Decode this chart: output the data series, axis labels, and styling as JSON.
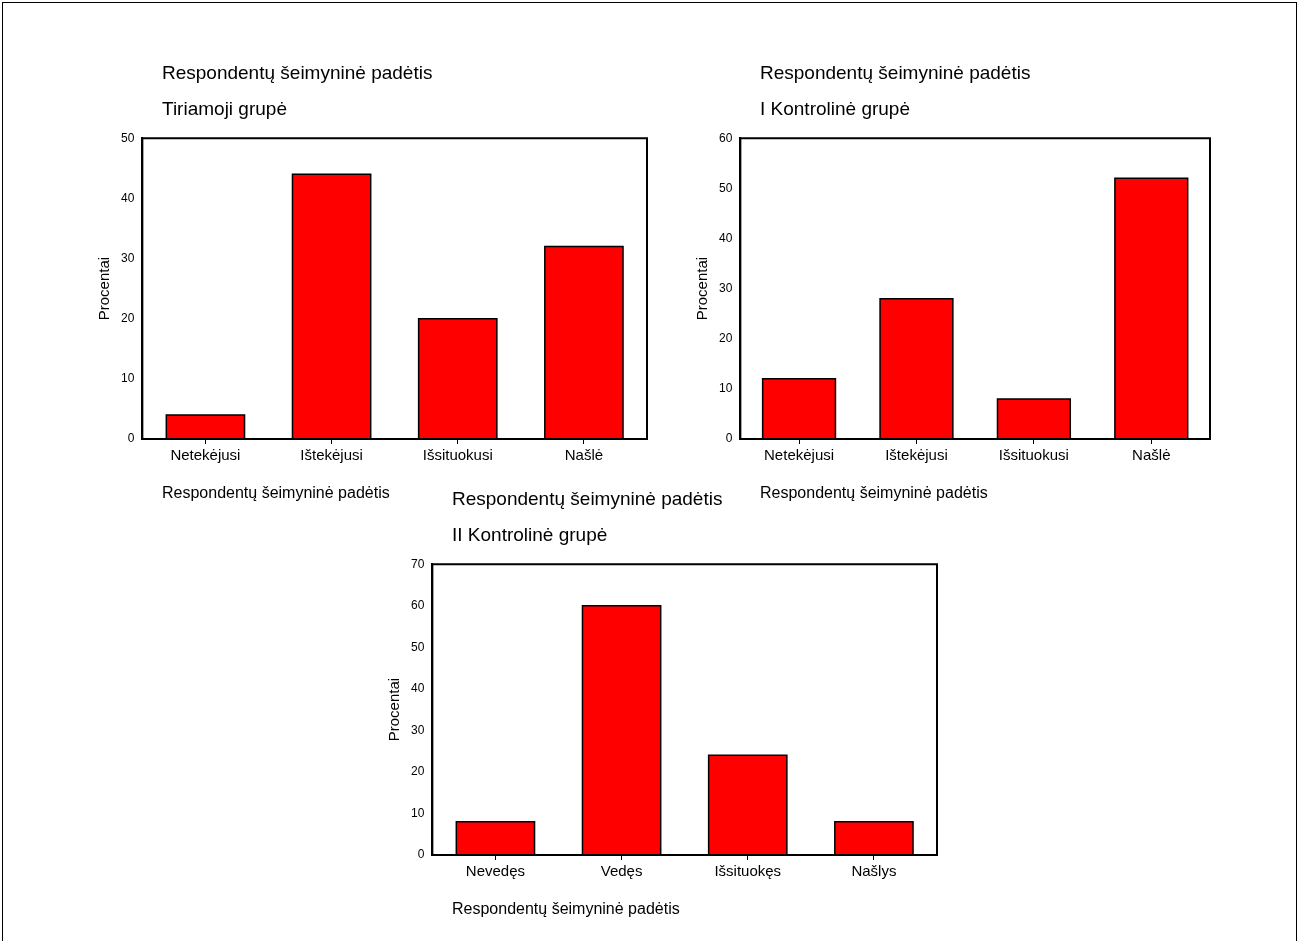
{
  "chart_data": [
    {
      "type": "bar",
      "title": "Respondentų šeimyninė padėtis",
      "subtitle": "Tiriamoji grupė",
      "xlabel": "Respondentų šeimyninė padėtis",
      "ylabel": "Procentai",
      "categories": [
        "Netekėjusi",
        "Ištekėjusi",
        "Išsituokusi",
        "Našlė"
      ],
      "values": [
        4,
        44,
        20,
        32
      ],
      "color": "#ff0000",
      "ylim": [
        0,
        50
      ],
      "yticks": [
        0,
        10,
        20,
        30,
        40,
        50
      ]
    },
    {
      "type": "bar",
      "title": "Respondentų šeimyninė padėtis",
      "subtitle": "I Kontrolinė grupė",
      "xlabel": "Respondentų šeimyninė padėtis",
      "ylabel": "Procentai",
      "categories": [
        "Netekėjusi",
        "Ištekėjusi",
        "Išsituokusi",
        "Našlė"
      ],
      "values": [
        12,
        28,
        8,
        52
      ],
      "color": "#ff0000",
      "ylim": [
        0,
        60
      ],
      "yticks": [
        0,
        10,
        20,
        30,
        40,
        50,
        60
      ]
    },
    {
      "type": "bar",
      "title": "Respondentų šeimyninė padėtis",
      "subtitle": "II Kontrolinė grupė",
      "xlabel": "Respondentų šeimyninė padėtis",
      "ylabel": "Procentai",
      "categories": [
        "Nevedęs",
        "Vedęs",
        "Išsituokęs",
        "Našlys"
      ],
      "values": [
        8,
        60,
        24,
        8
      ],
      "color": "#ff0000",
      "ylim": [
        0,
        70
      ],
      "yticks": [
        0,
        10,
        20,
        30,
        40,
        50,
        60,
        70
      ]
    }
  ]
}
